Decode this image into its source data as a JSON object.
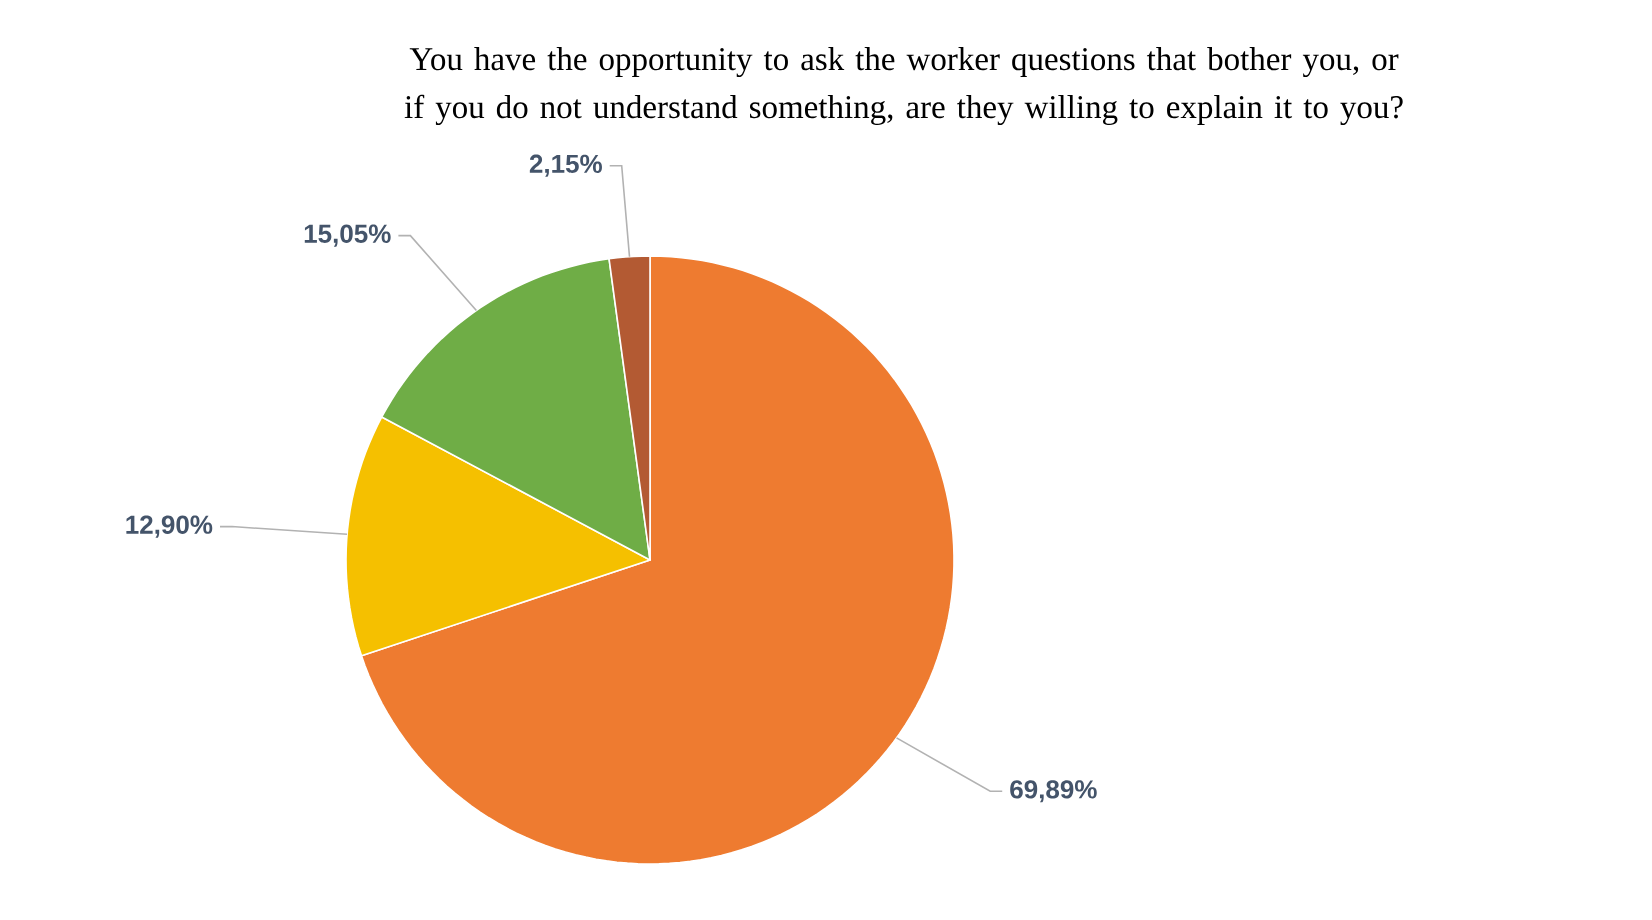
{
  "chart_data": {
    "type": "pie",
    "title": "You have the opportunity to ask the worker questions that bother you, or if you do not understand something, are they willing to explain it to you?",
    "categories": [
      null,
      null,
      null,
      null
    ],
    "values": [
      69.89,
      12.9,
      15.05,
      2.15
    ],
    "colors": [
      "#ee7b30",
      "#f5c000",
      "#6fad46",
      "#b35a33"
    ],
    "value_labels": [
      "69,89%",
      "12,90%",
      "15,05%",
      "2,15%"
    ]
  }
}
